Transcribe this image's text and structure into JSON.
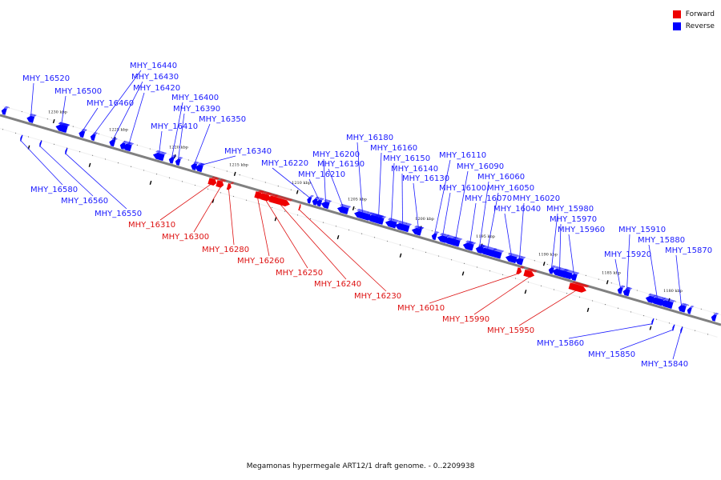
{
  "colors": {
    "forward": "#ee0000",
    "reverse": "#0000ff",
    "axis": "#808080",
    "forward_label": "#dd1111",
    "reverse_label": "#1a1aff"
  },
  "legend": [
    {
      "label": "Forward",
      "strand": "forward"
    },
    {
      "label": "Reverse",
      "strand": "reverse"
    }
  ],
  "caption": "Megamonas hypermegale ART12/1 draft genome. - 0..2209938",
  "tick_labels": [
    "1230 kbp",
    "1225 kbp",
    "1220 kbp",
    "1215 kbp",
    "1210 kbp",
    "1205 kbp",
    "1200 kbp",
    "1195 kbp",
    "1190 kbp",
    "1185 kbp",
    "1180 kbp"
  ],
  "genes": [
    {
      "name": "MHY_16520",
      "strand": "reverse",
      "side": "above"
    },
    {
      "name": "MHY_16500",
      "strand": "reverse",
      "side": "above"
    },
    {
      "name": "MHY_16460",
      "strand": "reverse",
      "side": "above"
    },
    {
      "name": "MHY_16440",
      "strand": "reverse",
      "side": "above"
    },
    {
      "name": "MHY_16430",
      "strand": "reverse",
      "side": "above"
    },
    {
      "name": "MHY_16420",
      "strand": "reverse",
      "side": "above"
    },
    {
      "name": "MHY_16410",
      "strand": "reverse",
      "side": "above"
    },
    {
      "name": "MHY_16400",
      "strand": "reverse",
      "side": "above"
    },
    {
      "name": "MHY_16390",
      "strand": "reverse",
      "side": "above"
    },
    {
      "name": "MHY_16350",
      "strand": "reverse",
      "side": "above"
    },
    {
      "name": "MHY_16340",
      "strand": "reverse",
      "side": "above"
    },
    {
      "name": "MHY_16220",
      "strand": "reverse",
      "side": "above"
    },
    {
      "name": "MHY_16210",
      "strand": "reverse",
      "side": "above"
    },
    {
      "name": "MHY_16200",
      "strand": "reverse",
      "side": "above"
    },
    {
      "name": "MHY_16190",
      "strand": "reverse",
      "side": "above"
    },
    {
      "name": "MHY_16180",
      "strand": "reverse",
      "side": "above"
    },
    {
      "name": "MHY_16160",
      "strand": "reverse",
      "side": "above"
    },
    {
      "name": "MHY_16150",
      "strand": "reverse",
      "side": "above"
    },
    {
      "name": "MHY_16140",
      "strand": "reverse",
      "side": "above"
    },
    {
      "name": "MHY_16130",
      "strand": "reverse",
      "side": "above"
    },
    {
      "name": "MHY_16110",
      "strand": "reverse",
      "side": "above"
    },
    {
      "name": "MHY_16100",
      "strand": "reverse",
      "side": "above"
    },
    {
      "name": "MHY_16090",
      "strand": "reverse",
      "side": "above"
    },
    {
      "name": "MHY_16070",
      "strand": "reverse",
      "side": "above"
    },
    {
      "name": "MHY_16060",
      "strand": "reverse",
      "side": "above"
    },
    {
      "name": "MHY_16050",
      "strand": "reverse",
      "side": "above"
    },
    {
      "name": "MHY_16040",
      "strand": "reverse",
      "side": "above"
    },
    {
      "name": "MHY_16020",
      "strand": "reverse",
      "side": "above"
    },
    {
      "name": "MHY_15980",
      "strand": "reverse",
      "side": "above"
    },
    {
      "name": "MHY_15970",
      "strand": "reverse",
      "side": "above"
    },
    {
      "name": "MHY_15960",
      "strand": "reverse",
      "side": "above"
    },
    {
      "name": "MHY_15920",
      "strand": "reverse",
      "side": "above"
    },
    {
      "name": "MHY_15910",
      "strand": "reverse",
      "side": "above"
    },
    {
      "name": "MHY_15880",
      "strand": "reverse",
      "side": "above"
    },
    {
      "name": "MHY_15870",
      "strand": "reverse",
      "side": "above"
    },
    {
      "name": "MHY_16580",
      "strand": "reverse",
      "side": "below"
    },
    {
      "name": "MHY_16560",
      "strand": "reverse",
      "side": "below"
    },
    {
      "name": "MHY_16550",
      "strand": "reverse",
      "side": "below"
    },
    {
      "name": "MHY_16310",
      "strand": "forward",
      "side": "below"
    },
    {
      "name": "MHY_16300",
      "strand": "forward",
      "side": "below"
    },
    {
      "name": "MHY_16280",
      "strand": "forward",
      "side": "below"
    },
    {
      "name": "MHY_16260",
      "strand": "forward",
      "side": "below"
    },
    {
      "name": "MHY_16250",
      "strand": "forward",
      "side": "below"
    },
    {
      "name": "MHY_16240",
      "strand": "forward",
      "side": "below"
    },
    {
      "name": "MHY_16230",
      "strand": "forward",
      "side": "below"
    },
    {
      "name": "MHY_16010",
      "strand": "forward",
      "side": "below"
    },
    {
      "name": "MHY_15990",
      "strand": "forward",
      "side": "below"
    },
    {
      "name": "MHY_15950",
      "strand": "forward",
      "side": "below"
    },
    {
      "name": "MHY_15860",
      "strand": "reverse",
      "side": "below"
    },
    {
      "name": "MHY_15850",
      "strand": "reverse",
      "side": "below"
    },
    {
      "name": "MHY_15840",
      "strand": "reverse",
      "side": "below"
    }
  ]
}
